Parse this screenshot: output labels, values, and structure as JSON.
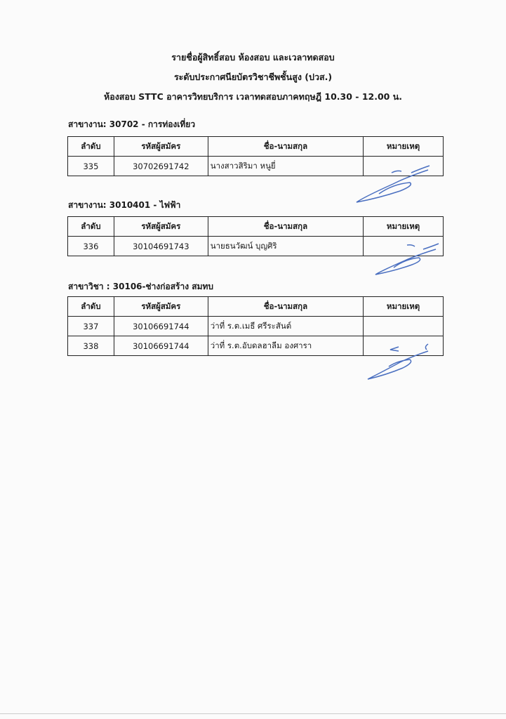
{
  "header": {
    "line1": "รายชื่อผู้สิทธิ์สอบ  ห้องสอบ  และเวลาทดสอบ",
    "line2": "ระดับประกาศนียบัตรวิชาชีพชั้นสูง  (ปวส.)",
    "line3": "ห้องสอบ   STTC  อาคารวิทยบริการ เวลาทดสอบภาคทฤษฎี  10.30 - 12.00  น."
  },
  "columns": [
    "ลำดับ",
    "รหัสผู้สมัคร",
    "ชื่อ-นามสกุล",
    "หมายเหตุ"
  ],
  "sections": [
    {
      "label": "สาขางาน: 30702 - การท่องเที่ยว",
      "rows": [
        {
          "no": "335",
          "id": "30702691742",
          "name": "นางสาวสิริมา  หนูยี่",
          "note": ""
        }
      ]
    },
    {
      "label": "สาขางาน: 3010401 - ไฟฟ้า",
      "rows": [
        {
          "no": "336",
          "id": "30104691743",
          "name": "นายธนวัฒน์  บุญศิริ",
          "note": ""
        }
      ]
    },
    {
      "label": "สาขาวิชา : 30106-ช่างก่อสร้าง  สมทบ",
      "rows": [
        {
          "no": "337",
          "id": "30106691744",
          "name": "ว่าที่ ร.ต.เมธี ศรีระสันต์",
          "note": ""
        },
        {
          "no": "338",
          "id": "30106691744",
          "name": "ว่าที่ ร.ต.อับดลฮาลีม  องศารา",
          "note": ""
        }
      ]
    }
  ],
  "colors": {
    "signature_ink": "#4a6fc0"
  }
}
